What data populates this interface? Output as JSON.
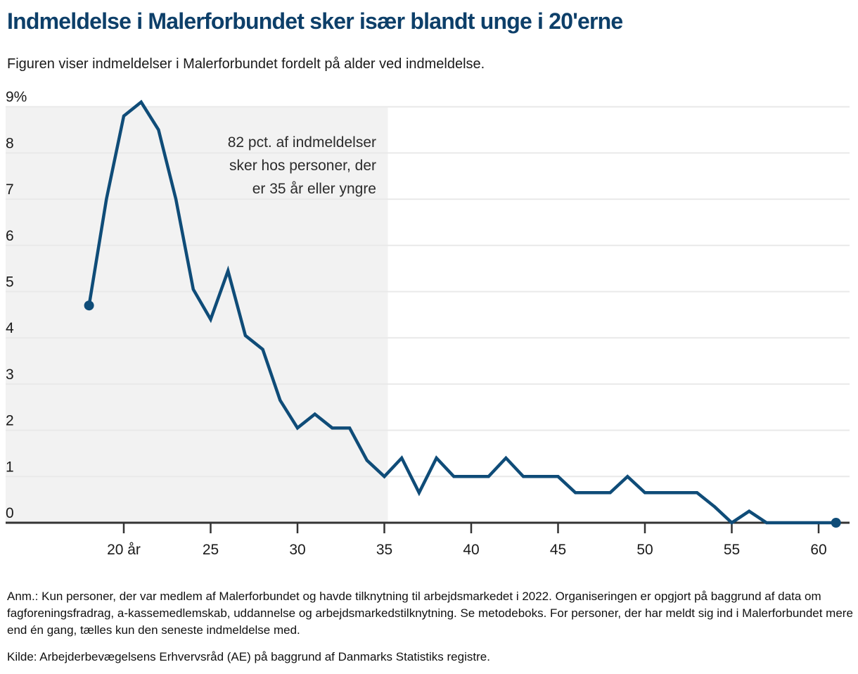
{
  "header": {
    "title": "Indmeldelse i Malerforbundet sker især blandt unge i 20'erne",
    "subtitle": "Figuren viser indmeldelser i Malerforbundet fordelt på alder ved indmeldelse."
  },
  "chart_data": {
    "type": "line",
    "title": "Indmeldelse i Malerforbundet sker især blandt unge i 20'erne",
    "subtitle": "Figuren viser indmeldelser i Malerforbundet fordelt på alder ved indmeldelse.",
    "x": [
      18,
      19,
      20,
      21,
      22,
      23,
      24,
      25,
      26,
      27,
      28,
      29,
      30,
      31,
      32,
      33,
      34,
      35,
      36,
      37,
      38,
      39,
      40,
      41,
      42,
      43,
      44,
      45,
      46,
      47,
      48,
      49,
      50,
      51,
      52,
      53,
      54,
      55,
      56,
      57,
      58,
      59,
      60,
      61
    ],
    "values": [
      4.7,
      7.0,
      8.8,
      9.1,
      8.5,
      7.0,
      5.05,
      4.4,
      5.45,
      4.05,
      3.75,
      2.65,
      2.05,
      2.35,
      2.05,
      2.05,
      1.35,
      1.0,
      1.4,
      0.65,
      1.4,
      1.0,
      1.0,
      1.0,
      1.4,
      1.0,
      1.0,
      1.0,
      0.65,
      0.65,
      0.65,
      1.0,
      0.65,
      0.65,
      0.65,
      0.65,
      0.35,
      0.0,
      0.25,
      0.0,
      0.0,
      0.0,
      0.0,
      0.0
    ],
    "ylim": [
      0,
      9
    ],
    "y_unit": "%",
    "y_ticks": [
      {
        "value": 9,
        "label": "9%"
      },
      {
        "value": 8,
        "label": "8"
      },
      {
        "value": 7,
        "label": "7"
      },
      {
        "value": 6,
        "label": "6"
      },
      {
        "value": 5,
        "label": "5"
      },
      {
        "value": 4,
        "label": "4"
      },
      {
        "value": 3,
        "label": "3"
      },
      {
        "value": 2,
        "label": "2"
      },
      {
        "value": 1,
        "label": "1"
      },
      {
        "value": 0,
        "label": "0"
      }
    ],
    "x_ticks": [
      {
        "value": 20,
        "label": "20 år"
      },
      {
        "value": 25,
        "label": "25"
      },
      {
        "value": 30,
        "label": "30"
      },
      {
        "value": 35,
        "label": "35"
      },
      {
        "value": 40,
        "label": "40"
      },
      {
        "value": 45,
        "label": "45"
      },
      {
        "value": 50,
        "label": "50"
      },
      {
        "value": 55,
        "label": "55"
      },
      {
        "value": 60,
        "label": "60"
      }
    ],
    "grid": true,
    "legend_position": "none",
    "annotation": "82 pct. af indmeldelser\nsker hos personer, der\ner 35 år eller yngre",
    "shaded_region": {
      "x_end_age": 35.2,
      "color": "#f2f2f2"
    },
    "colors": {
      "line": "#0f4c78",
      "grid": "#e9e9e9",
      "axis": "#333333",
      "shade": "#f2f2f2"
    },
    "endpoint_dots": true
  },
  "footnotes": {
    "anm": "Anm.: Kun personer, der var medlem af Malerforbundet og havde tilknytning til arbejdsmarkedet i 2022. Organiseringen er opgjort på baggrund af data om fagforeningsfradrag, a-kassemedlemskab, uddannelse og arbejdsmarkedstilknytning. Se metodeboks. For personer, der har meldt sig ind i Malerforbundet mere end én gang, tælles kun den seneste indmeldelse med.",
    "kilde": "Kilde: Arbejderbevægelsens Erhvervsråd (AE) på baggrund af Danmarks Statistiks registre."
  }
}
